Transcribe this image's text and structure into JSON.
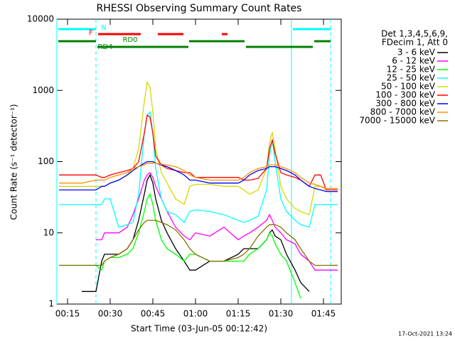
{
  "chart_data": {
    "type": "line",
    "title": "RHESSI Observing Summary Count Rates",
    "xlabel": "Start Time (03-Jun-05 00:12:42)",
    "ylabel": "Count Rate (s⁻¹ detector⁻¹)",
    "footer": "17-Oct-2021 13:24",
    "log_y": true,
    "xlim": [
      11.25,
      111.25
    ],
    "ylim": [
      1,
      10000
    ],
    "xticks": [
      {
        "value": 15,
        "label": "00:15"
      },
      {
        "value": 30,
        "label": "00:30"
      },
      {
        "value": 45,
        "label": "00:45"
      },
      {
        "value": 60,
        "label": "01:00"
      },
      {
        "value": 75,
        "label": "01:15"
      },
      {
        "value": 90,
        "label": "01:30"
      },
      {
        "value": 105,
        "label": "01:45"
      }
    ],
    "yticks": [
      1,
      10,
      100,
      1000,
      10000
    ],
    "legend_header": [
      "Det 1,3,4,5,6,9,",
      "FDecim 1, Att 0"
    ],
    "x": [
      12,
      15,
      20,
      25,
      27,
      28,
      30,
      33,
      36,
      38,
      40,
      42,
      43,
      44,
      45,
      46,
      48,
      50,
      53,
      56,
      58,
      60,
      65,
      70,
      75,
      77,
      79,
      82,
      85,
      86,
      87,
      88,
      90,
      92,
      95,
      97,
      100,
      102,
      104,
      106,
      108,
      110
    ],
    "series": [
      {
        "name": "3 - 6 keV",
        "color": "#000000",
        "values": [
          null,
          null,
          1.5,
          1.5,
          4,
          5,
          5,
          5,
          6,
          8,
          15,
          35,
          55,
          65,
          50,
          30,
          15,
          10,
          6,
          4,
          3,
          3,
          4,
          4,
          5,
          6,
          6,
          6,
          8,
          10,
          11,
          9,
          8,
          5,
          3,
          2,
          1.5,
          null,
          null,
          null,
          null,
          null
        ]
      },
      {
        "name": "6 - 12 keV",
        "color": "#ff00ff",
        "values": [
          null,
          null,
          null,
          8,
          8,
          10,
          10,
          10,
          12,
          18,
          30,
          55,
          65,
          70,
          60,
          45,
          30,
          20,
          12,
          9,
          8,
          10,
          9,
          12,
          8,
          9,
          10,
          12,
          15,
          18,
          15,
          12,
          10,
          8,
          7,
          5,
          4,
          3,
          3,
          3,
          3,
          3
        ]
      },
      {
        "name": "12 - 25 keV",
        "color": "#00ff00",
        "values": [
          3.5,
          3.5,
          3.5,
          3.5,
          3,
          4,
          4.5,
          4.5,
          5,
          6,
          10,
          20,
          30,
          35,
          25,
          15,
          8,
          6,
          5,
          4,
          5,
          5,
          4,
          4,
          4,
          4,
          5,
          6,
          8,
          10,
          9,
          7,
          5,
          4,
          2,
          1.2,
          null,
          null,
          null,
          null,
          3.5,
          3.5
        ]
      },
      {
        "name": "25 - 50 keV",
        "color": "#00ffff",
        "values": [
          25,
          25,
          25,
          25,
          25,
          30,
          30,
          12,
          13,
          14,
          35,
          250,
          450,
          500,
          250,
          80,
          30,
          20,
          18,
          14,
          20,
          21,
          20,
          18,
          15,
          14,
          15,
          17,
          40,
          120,
          200,
          100,
          30,
          20,
          15,
          13,
          12,
          25,
          25,
          25,
          25,
          25
        ]
      },
      {
        "name": "50 - 100 keV",
        "color": "#d8d800",
        "values": [
          45,
          45,
          45,
          45,
          45,
          45,
          50,
          55,
          65,
          80,
          150,
          700,
          1300,
          1100,
          500,
          150,
          70,
          50,
          30,
          25,
          45,
          48,
          48,
          45,
          45,
          40,
          35,
          40,
          80,
          180,
          260,
          150,
          45,
          30,
          22,
          20,
          18,
          45,
          45,
          40,
          40,
          40
        ]
      },
      {
        "name": "100 - 300 keV",
        "color": "#ff0000",
        "values": [
          65,
          65,
          65,
          65,
          60,
          60,
          65,
          70,
          75,
          80,
          100,
          250,
          450,
          420,
          250,
          120,
          90,
          80,
          75,
          70,
          70,
          60,
          60,
          60,
          60,
          55,
          55,
          58,
          80,
          150,
          200,
          130,
          70,
          65,
          60,
          55,
          45,
          65,
          65,
          40,
          40,
          40
        ]
      },
      {
        "name": "300 - 800 keV",
        "color": "#0000ff",
        "values": [
          40,
          40,
          40,
          40,
          45,
          45,
          50,
          55,
          65,
          75,
          85,
          95,
          100,
          100,
          100,
          95,
          90,
          85,
          75,
          65,
          55,
          55,
          50,
          50,
          50,
          55,
          65,
          75,
          80,
          85,
          85,
          85,
          80,
          75,
          65,
          55,
          45,
          42,
          40,
          38,
          38,
          38
        ]
      },
      {
        "name": "800 - 7000 keV",
        "color": "#ff9000",
        "values": [
          50,
          50,
          50,
          55,
          55,
          55,
          60,
          65,
          70,
          80,
          85,
          90,
          95,
          95,
          95,
          95,
          92,
          90,
          85,
          75,
          65,
          60,
          55,
          55,
          55,
          60,
          70,
          80,
          85,
          90,
          90,
          90,
          85,
          80,
          70,
          60,
          50,
          48,
          45,
          42,
          42,
          42
        ]
      },
      {
        "name": "7000 - 15000 keV",
        "color": "#857000",
        "values": [
          3.5,
          3.5,
          3.5,
          3.5,
          3.5,
          4,
          4.5,
          5,
          6,
          8,
          11,
          14,
          15,
          15,
          15,
          15,
          14,
          13,
          11,
          8,
          6,
          5,
          4,
          4,
          4.5,
          5,
          6,
          9,
          12,
          13,
          13,
          13,
          12,
          10,
          8,
          6,
          4,
          3.5,
          3.5,
          3.5,
          3.5,
          3.5
        ]
      }
    ],
    "flags": [
      {
        "label": "N",
        "color": "#00ffff",
        "segments": [
          [
            11.75,
            25
          ],
          [
            94.25,
            107.5
          ]
        ]
      },
      {
        "label": "F",
        "color": "#ff0000",
        "segments": [
          [
            25.75,
            40.75
          ],
          [
            46.75,
            55.75
          ],
          [
            69.25,
            71.25
          ]
        ]
      },
      {
        "label": "RD0",
        "color": "#008000",
        "segments": [
          [
            11.75,
            25
          ],
          [
            57.75,
            77.25
          ],
          [
            101.75,
            107.5
          ]
        ]
      },
      {
        "label": "RD4",
        "color": "#008000",
        "segments": [
          [
            25.5,
            57.5
          ],
          [
            77.75,
            101.25
          ]
        ]
      }
    ],
    "vlines": [
      {
        "x": 11.25,
        "dashed": false
      },
      {
        "x": 25,
        "dashed": true
      },
      {
        "x": 93.75,
        "dashed": false
      },
      {
        "x": 107.5,
        "dashed": true
      }
    ]
  }
}
